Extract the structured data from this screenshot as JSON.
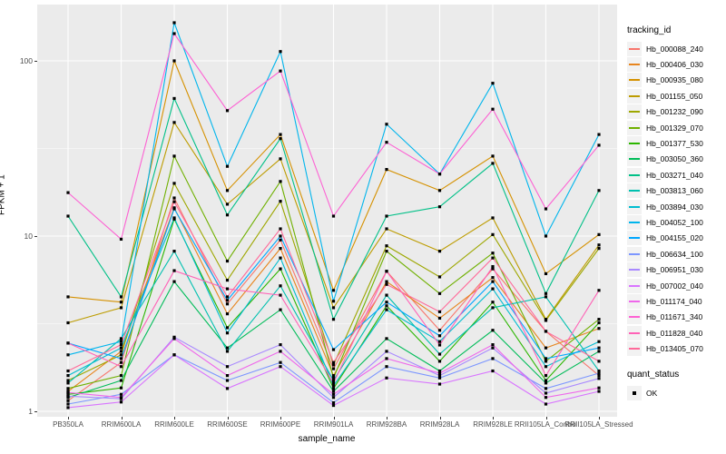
{
  "figure": {
    "y_axis_title": "FPKM + 1",
    "x_axis_title": "sample_name"
  },
  "colors": {
    "panel_background": "#EBEBEB",
    "gridline": "#FFFFFF",
    "legend_key_background": "#F2F2F2",
    "axis_tick_text": "#4D4D4D",
    "point_marker": "#000000"
  },
  "chart_data": {
    "type": "line",
    "scale_y": "log10",
    "xlabel": "sample_name",
    "ylabel": "FPKM + 1",
    "ylim": [
      0.93,
      209
    ],
    "grid": "white major (1,10,100) + minor (3.16,31.6) on grey panel; vertical white line per category",
    "y_ticks": [
      {
        "label": "100",
        "value": 100
      },
      {
        "label": "10",
        "value": 10
      },
      {
        "label": "1",
        "value": 1
      }
    ],
    "categories": [
      "PB350LA",
      "RRIM600LA",
      "RRIM600LE",
      "RRIM600SE",
      "RRIM600PE",
      "RRIM901LA",
      "RRIM928BA",
      "RRIM928LA",
      "RRIM928LE",
      "RRII105LA_Control",
      "RRII105LA_Stressed"
    ],
    "legend": {
      "title": "tracking_id",
      "position": "right"
    },
    "quant_legend": {
      "title": "quant_status",
      "items": [
        "OK"
      ],
      "marker": "black-square"
    },
    "point_marker": "black-square",
    "series": [
      {
        "name": "Hb_000088_240",
        "color": "#F8766D",
        "values": [
          1.15,
          1.9,
          16.5,
          4.1,
          9.5,
          1.75,
          6.3,
          2.9,
          6.5,
          2.86,
          1.6
        ]
      },
      {
        "name": "Hb_000406_030",
        "color": "#E7851E",
        "values": [
          1.3,
          2.2,
          14.5,
          3.6,
          8.5,
          1.6,
          5.5,
          3.4,
          5.8,
          2.3,
          2.97
        ]
      },
      {
        "name": "Hb_000935_080",
        "color": "#D59100",
        "values": [
          4.5,
          4.2,
          100,
          18.2,
          38,
          4.9,
          24,
          18.2,
          28.6,
          6.1,
          10.2
        ]
      },
      {
        "name": "Hb_001155_050",
        "color": "#BD9C00",
        "values": [
          3.2,
          3.9,
          44.5,
          15.2,
          27.6,
          3.9,
          11,
          8.2,
          12.7,
          3.35,
          8.9
        ]
      },
      {
        "name": "Hb_001232_090",
        "color": "#9DA700",
        "values": [
          1.5,
          2.1,
          20,
          5.6,
          15.8,
          1.84,
          8.8,
          5.85,
          10.2,
          3.3,
          8.5
        ]
      },
      {
        "name": "Hb_001329_070",
        "color": "#6FB000",
        "values": [
          1.35,
          1.6,
          28.6,
          7.2,
          20.5,
          1.55,
          8.2,
          4.7,
          8.0,
          1.93,
          3.35
        ]
      },
      {
        "name": "Hb_001377_530",
        "color": "#2BB600",
        "values": [
          1.25,
          1.36,
          12.5,
          3.0,
          6.5,
          1.35,
          4.0,
          1.93,
          4.2,
          1.5,
          3.2
        ]
      },
      {
        "name": "Hb_003050_360",
        "color": "#00BC59",
        "values": [
          1.2,
          1.5,
          5.5,
          2.3,
          3.8,
          1.3,
          2.6,
          1.7,
          2.9,
          1.45,
          2.2
        ]
      },
      {
        "name": "Hb_003271_040",
        "color": "#00C087",
        "values": [
          13,
          4.5,
          61,
          13.2,
          36,
          3.35,
          13,
          14.7,
          26,
          4.7,
          18.2
        ]
      },
      {
        "name": "Hb_003813_060",
        "color": "#00C0AF",
        "values": [
          1.45,
          2.6,
          8.2,
          2.2,
          5.2,
          1.5,
          4.6,
          2.12,
          3.9,
          4.5,
          1.7
        ]
      },
      {
        "name": "Hb_003894_030",
        "color": "#00BDD0",
        "values": [
          1.6,
          2.3,
          12.7,
          2.8,
          7.5,
          1.4,
          3.8,
          2.5,
          5.0,
          1.8,
          2.5
        ]
      },
      {
        "name": "Hb_004052_100",
        "color": "#00B5EC",
        "values": [
          2.1,
          2.5,
          165,
          25,
          113,
          4.25,
          43.5,
          22.6,
          74.5,
          10,
          38
        ]
      },
      {
        "name": "Hb_004155_020",
        "color": "#00A7FF",
        "values": [
          2.45,
          2.0,
          14.3,
          4.3,
          10,
          2.25,
          4.2,
          2.7,
          5.5,
          2.0,
          2.3
        ]
      },
      {
        "name": "Hb_006634_100",
        "color": "#7C96FF",
        "values": [
          1.1,
          1.25,
          2.1,
          1.5,
          1.9,
          1.12,
          1.8,
          1.55,
          2.0,
          1.35,
          1.65
        ]
      },
      {
        "name": "Hb_006951_030",
        "color": "#A989FF",
        "values": [
          1.22,
          1.18,
          2.65,
          1.8,
          2.4,
          1.2,
          2.2,
          1.6,
          2.3,
          1.27,
          1.54
        ]
      },
      {
        "name": "Hb_007002_040",
        "color": "#D874FF",
        "values": [
          1.05,
          1.13,
          2.1,
          1.35,
          1.8,
          1.08,
          1.55,
          1.43,
          1.7,
          1.1,
          1.3
        ]
      },
      {
        "name": "Hb_011174_040",
        "color": "#EF67EB",
        "values": [
          1.28,
          1.2,
          2.6,
          1.6,
          2.2,
          1.25,
          2.0,
          1.65,
          2.4,
          1.2,
          1.36
        ]
      },
      {
        "name": "Hb_011671_340",
        "color": "#FD61D3",
        "values": [
          17.7,
          9.6,
          143,
          52,
          87.5,
          13,
          34.3,
          22.6,
          53,
          14.3,
          33
        ]
      },
      {
        "name": "Hb_011828_040",
        "color": "#FF62B6",
        "values": [
          2.45,
          1.8,
          6.35,
          5.0,
          4.6,
          1.45,
          6.3,
          2.39,
          6.7,
          1.6,
          4.9
        ]
      },
      {
        "name": "Hb_013405_070",
        "color": "#FF6A9A",
        "values": [
          1.7,
          2.4,
          15.7,
          4.5,
          11,
          1.9,
          5.3,
          3.7,
          7.5,
          2.86,
          1.93
        ]
      }
    ]
  }
}
